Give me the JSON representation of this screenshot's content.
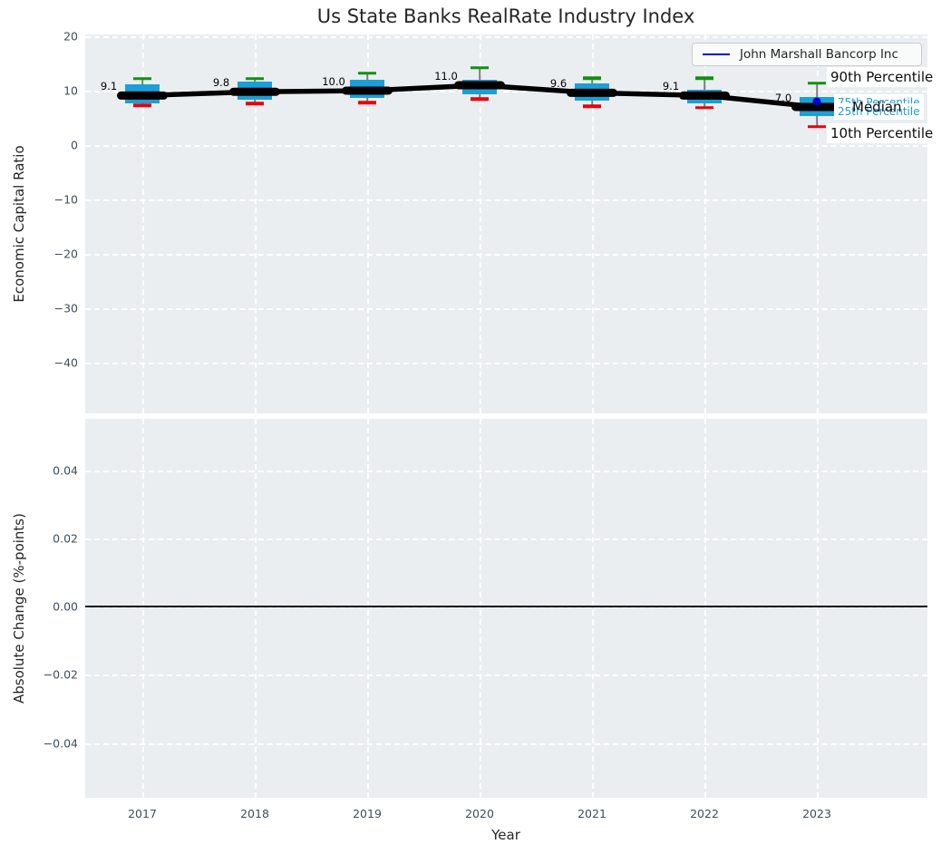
{
  "title": "Us State Banks RealRate Industry Index",
  "legend": {
    "series_label": "John Marshall Bancorp Inc",
    "line_color": "#0000cd"
  },
  "percentile_labels": {
    "p90": "90th Percentile",
    "p75": "75th Percentile",
    "median": "Median",
    "p25": "25th Percentile",
    "p10": "10th Percentile"
  },
  "colors": {
    "axes_background": "#eaeef1",
    "grid": "#ffffff",
    "box_fill": "#1c9ed6",
    "whisker": "#7a7a7a",
    "cap_90th": "#119111",
    "cap_10th": "#e8000b",
    "median_line": "#000000",
    "company_marker": "#0000cd",
    "percentile_text_cyan": "#1f9ed1",
    "tick_text": "#3e4e60",
    "label_text": "#262626"
  },
  "chart_data": [
    {
      "type": "boxplot",
      "title": "Us State Banks RealRate Industry Index",
      "xlabel": "Year",
      "ylabel": "Economic Capital Ratio",
      "categories": [
        2017,
        2018,
        2019,
        2020,
        2021,
        2022,
        2023
      ],
      "ytick_labels": [
        "20",
        "10",
        "0",
        "−10",
        "−20",
        "−30",
        "−40"
      ],
      "ytick_values": [
        20,
        10,
        0,
        -10,
        -20,
        -30,
        -40
      ],
      "ylim": [
        -49.6,
        20.4
      ],
      "grid": true,
      "legend_position": "upper right",
      "series": [
        {
          "name": "median",
          "values": [
            9.1,
            9.8,
            10.0,
            11.0,
            9.6,
            9.1,
            7.0
          ]
        },
        {
          "name": "75th_percentile",
          "values": [
            11.2,
            11.7,
            12.0,
            12.0,
            11.3,
            10.1,
            8.8
          ]
        },
        {
          "name": "25th_percentile",
          "values": [
            7.7,
            8.4,
            8.6,
            9.3,
            8.1,
            7.7,
            5.3
          ]
        },
        {
          "name": "90th_percentile",
          "values": [
            12.2,
            12.2,
            13.2,
            14.2,
            12.3,
            12.3,
            11.4
          ]
        },
        {
          "name": "10th_percentile",
          "values": [
            7.3,
            7.6,
            7.8,
            8.5,
            7.1,
            6.9,
            3.4
          ]
        }
      ],
      "median_point_labels": [
        "9.1",
        "9.8",
        "10.0",
        "11.0",
        "9.6",
        "9.1",
        "7.0"
      ],
      "company_point": {
        "name": "John Marshall Bancorp Inc",
        "x": 2023,
        "y": 8.0
      }
    },
    {
      "type": "line",
      "xlabel": "Year",
      "ylabel": "Absolute Change (%-points)",
      "categories": [
        2017,
        2018,
        2019,
        2020,
        2021,
        2022,
        2023
      ],
      "ytick_labels": [
        "0.04",
        "0.02",
        "0.00",
        "−0.02",
        "−0.04"
      ],
      "ytick_values": [
        0.04,
        0.02,
        0.0,
        -0.02,
        -0.04
      ],
      "ylim": [
        -0.057,
        0.055
      ],
      "grid": true,
      "series": [
        {
          "name": "zero_line",
          "values": [
            0,
            0,
            0,
            0,
            0,
            0,
            0
          ]
        }
      ]
    }
  ]
}
